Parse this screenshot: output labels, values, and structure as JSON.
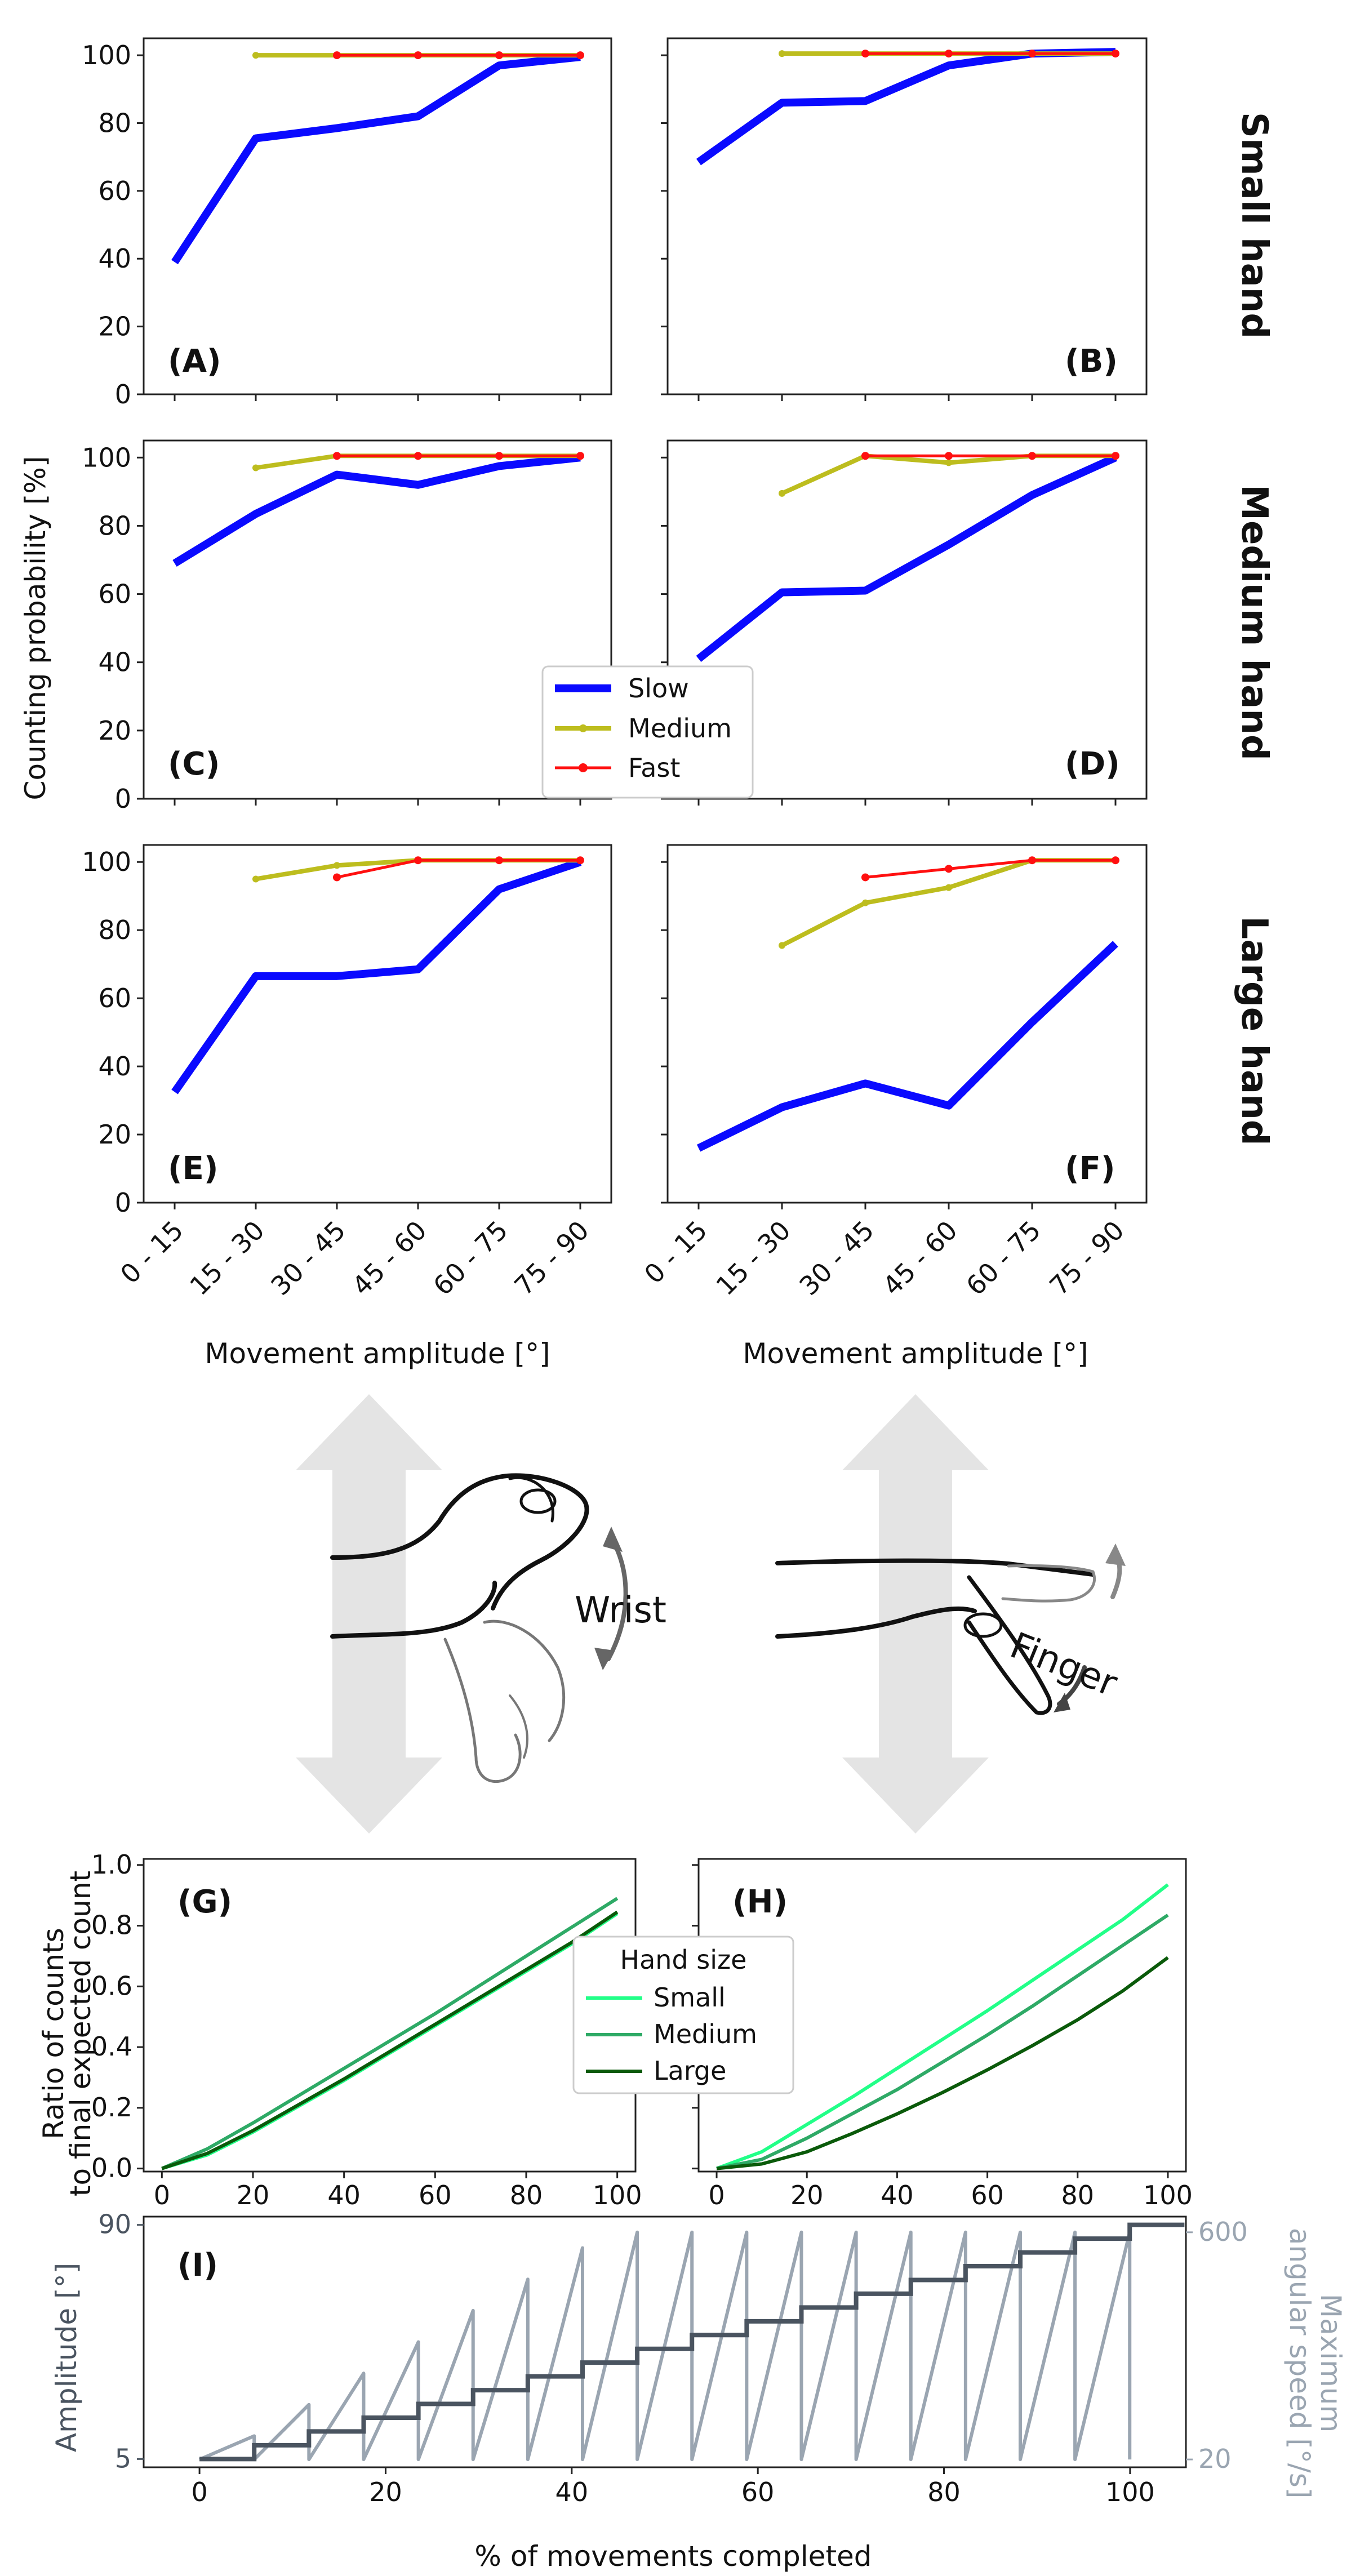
{
  "colors": {
    "slow": "#0a0aff",
    "medium": "#bdbd1e",
    "fast": "#ff1010",
    "small_hand": "#22ff88",
    "medium_hand": "#2eaa66",
    "large_hand": "#0a5a0a",
    "amplitude": "#4a5460",
    "speed": "#9aa5b1",
    "arrow": "#e4e4e4"
  },
  "chart_data": [
    {
      "id": "A",
      "type": "line",
      "label": "(A)",
      "row_label": "Small hand",
      "categories": [
        "0 - 15",
        "15 - 30",
        "30 - 45",
        "45 - 60",
        "60 - 75",
        "75 - 90"
      ],
      "ylim": [
        0,
        105
      ],
      "yticks": [
        0,
        20,
        40,
        60,
        80,
        100
      ],
      "series": [
        {
          "name": "Slow",
          "values": [
            39,
            75.5,
            78.5,
            82,
            97,
            99.5
          ]
        },
        {
          "name": "Medium",
          "values": [
            null,
            100,
            100,
            100,
            100,
            100
          ]
        },
        {
          "name": "Fast",
          "values": [
            null,
            null,
            100,
            100,
            100,
            100
          ]
        }
      ]
    },
    {
      "id": "B",
      "type": "line",
      "label": "(B)",
      "categories": [
        "0 - 15",
        "15 - 30",
        "30 - 45",
        "45 - 60",
        "60 - 75",
        "75 - 90"
      ],
      "ylim": [
        0,
        105
      ],
      "series": [
        {
          "name": "Slow",
          "values": [
            68.5,
            86,
            86.5,
            97,
            100.5,
            101
          ]
        },
        {
          "name": "Medium",
          "values": [
            null,
            100.5,
            100.5,
            100.5,
            100.5,
            100.5
          ]
        },
        {
          "name": "Fast",
          "values": [
            null,
            null,
            100.5,
            100.5,
            100.5,
            100.5
          ]
        }
      ]
    },
    {
      "id": "C",
      "type": "line",
      "label": "(C)",
      "row_label": "Medium hand",
      "categories": [
        "0 - 15",
        "15 - 30",
        "30 - 45",
        "45 - 60",
        "60 - 75",
        "75 - 90"
      ],
      "ylim": [
        0,
        105
      ],
      "yticks": [
        0,
        20,
        40,
        60,
        80,
        100
      ],
      "series": [
        {
          "name": "Slow",
          "values": [
            69,
            83.5,
            95,
            92,
            97.5,
            100
          ]
        },
        {
          "name": "Medium",
          "values": [
            null,
            97,
            100.5,
            100.5,
            100.5,
            100.5
          ]
        },
        {
          "name": "Fast",
          "values": [
            null,
            null,
            100.5,
            100.5,
            100.5,
            100.5
          ]
        }
      ]
    },
    {
      "id": "D",
      "type": "line",
      "label": "(D)",
      "categories": [
        "0 - 15",
        "15 - 30",
        "30 - 45",
        "45 - 60",
        "60 - 75",
        "75 - 90"
      ],
      "ylim": [
        0,
        105
      ],
      "series": [
        {
          "name": "Slow",
          "values": [
            41,
            60.5,
            61,
            74.5,
            89,
            100
          ]
        },
        {
          "name": "Medium",
          "values": [
            null,
            89.5,
            100.5,
            98.5,
            100.5,
            100.5
          ]
        },
        {
          "name": "Fast",
          "values": [
            null,
            null,
            100.5,
            100.5,
            100.5,
            100.5
          ]
        }
      ]
    },
    {
      "id": "E",
      "type": "line",
      "label": "(E)",
      "row_label": "Large hand",
      "categories": [
        "0 - 15",
        "15 - 30",
        "30 - 45",
        "45 - 60",
        "60 - 75",
        "75 - 90"
      ],
      "ylim": [
        0,
        105
      ],
      "yticks": [
        0,
        20,
        40,
        60,
        80,
        100
      ],
      "series": [
        {
          "name": "Slow",
          "values": [
            32.5,
            66.5,
            66.5,
            68.5,
            92,
            100
          ]
        },
        {
          "name": "Medium",
          "values": [
            null,
            95,
            99,
            100.5,
            100.5,
            100.5
          ]
        },
        {
          "name": "Fast",
          "values": [
            null,
            null,
            95.5,
            100.5,
            100.5,
            100.5
          ]
        }
      ]
    },
    {
      "id": "F",
      "type": "line",
      "label": "(F)",
      "categories": [
        "0 - 15",
        "15 - 30",
        "30 - 45",
        "45 - 60",
        "60 - 75",
        "75 - 90"
      ],
      "ylim": [
        0,
        105
      ],
      "series": [
        {
          "name": "Slow",
          "values": [
            16,
            28,
            35,
            28.5,
            53,
            76
          ]
        },
        {
          "name": "Medium",
          "values": [
            null,
            75.5,
            88,
            92.5,
            100.5,
            100.5
          ]
        },
        {
          "name": "Fast",
          "values": [
            null,
            null,
            95.5,
            98,
            100.5,
            100.5
          ]
        }
      ]
    },
    {
      "id": "G",
      "type": "line",
      "label": "(G)",
      "x": [
        0,
        10,
        20,
        30,
        40,
        50,
        60,
        70,
        80,
        90,
        100
      ],
      "xlim": [
        -4,
        104
      ],
      "ylim": [
        -0.01,
        1.02
      ],
      "xticks": [
        0,
        20,
        40,
        60,
        80,
        100
      ],
      "yticks": [
        0.0,
        0.2,
        0.4,
        0.6,
        0.8,
        1.0
      ],
      "series": [
        {
          "name": "Small",
          "values": [
            0,
            0.045,
            0.12,
            0.205,
            0.29,
            0.38,
            0.47,
            0.56,
            0.65,
            0.74,
            0.84
          ]
        },
        {
          "name": "Medium",
          "values": [
            0,
            0.065,
            0.15,
            0.24,
            0.33,
            0.42,
            0.51,
            0.605,
            0.7,
            0.795,
            0.89
          ]
        },
        {
          "name": "Large",
          "values": [
            0,
            0.05,
            0.125,
            0.21,
            0.295,
            0.385,
            0.475,
            0.565,
            0.655,
            0.745,
            0.845
          ]
        }
      ]
    },
    {
      "id": "H",
      "type": "line",
      "label": "(H)",
      "x": [
        0,
        10,
        20,
        30,
        40,
        50,
        60,
        70,
        80,
        90,
        100
      ],
      "xlim": [
        -4,
        104
      ],
      "ylim": [
        -0.01,
        1.02
      ],
      "xticks": [
        0,
        20,
        40,
        60,
        80,
        100
      ],
      "series": [
        {
          "name": "Small",
          "values": [
            0,
            0.055,
            0.145,
            0.235,
            0.33,
            0.425,
            0.52,
            0.62,
            0.72,
            0.82,
            0.935
          ]
        },
        {
          "name": "Medium",
          "values": [
            0,
            0.03,
            0.1,
            0.18,
            0.26,
            0.35,
            0.44,
            0.535,
            0.635,
            0.735,
            0.835
          ]
        },
        {
          "name": "Large",
          "values": [
            0,
            0.015,
            0.055,
            0.115,
            0.18,
            0.25,
            0.325,
            0.405,
            0.49,
            0.585,
            0.695
          ]
        }
      ]
    },
    {
      "id": "I",
      "type": "line",
      "label": "(I)",
      "xlim": [
        -6,
        106
      ],
      "xticks": [
        0,
        20,
        40,
        60,
        80,
        100
      ],
      "amplitude": {
        "ylim": [
          2,
          93
        ],
        "yticks": [
          5,
          90
        ],
        "levels": [
          5,
          10,
          15,
          20,
          25,
          30,
          35,
          40,
          45,
          50,
          55,
          60,
          65,
          70,
          75,
          80,
          85,
          90
        ],
        "step_width": 5.88
      },
      "speed": {
        "ylim": [
          0,
          640
        ],
        "yticks": [
          20,
          600
        ],
        "peaks": [
          80,
          160,
          240,
          320,
          400,
          480,
          560,
          600,
          600,
          600,
          600,
          600,
          600,
          600,
          600,
          600,
          600
        ]
      }
    }
  ],
  "legend_speed": {
    "items": [
      {
        "label": "Slow",
        "key": "slow"
      },
      {
        "label": "Medium",
        "key": "medium"
      },
      {
        "label": "Fast",
        "key": "fast"
      }
    ]
  },
  "legend_hand": {
    "title": "Hand size",
    "items": [
      {
        "label": "Small",
        "key": "small_hand"
      },
      {
        "label": "Medium",
        "key": "medium_hand"
      },
      {
        "label": "Large",
        "key": "large_hand"
      }
    ]
  },
  "labels": {
    "y_top": "Counting probability [%]",
    "x_top": "Movement amplitude [°]",
    "y_gh_line1": "Ratio of counts",
    "y_gh_line2": "to final expected count",
    "y_i_left": "Amplitude [°]",
    "y_i_right_line1": "Maximum",
    "y_i_right_line2": "angular speed [°/s]",
    "x_bottom": "% of movements completed",
    "wrist": "Wrist",
    "finger": "Finger"
  }
}
